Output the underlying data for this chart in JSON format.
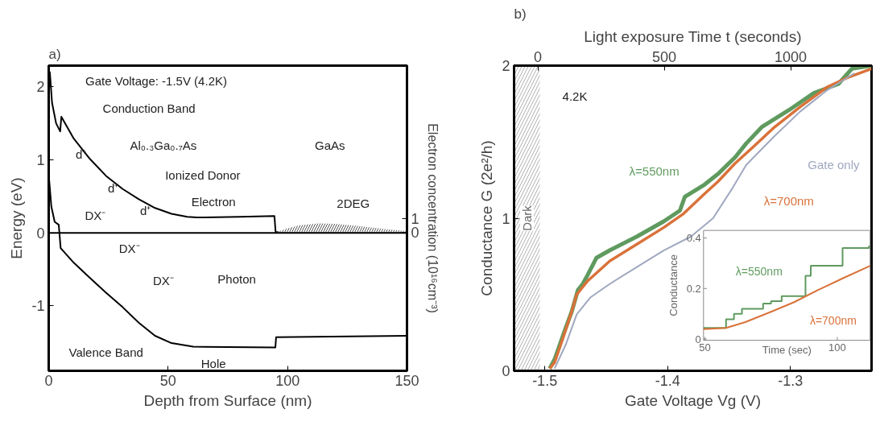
{
  "chart_data": [
    {
      "type": "line",
      "title": "a)",
      "xlabel": "Depth from Surface (nm)",
      "ylabel": "Energy (eV)",
      "y2label": "Electron concentration (10¹⁶cm⁻³)",
      "xlim": [
        0,
        150
      ],
      "xticks": [
        0,
        50,
        100,
        150
      ],
      "ylim": [
        -1.89,
        2.29
      ],
      "yticks": [
        -1,
        0,
        1,
        2
      ],
      "y2lim": [
        -9.7,
        11.7
      ],
      "y2ticks": [
        0,
        1
      ],
      "grid": false,
      "series": [
        {
          "type": "line",
          "color": "#000000",
          "x": [
            0.3,
            0.5,
            1.4,
            3.1,
            4.8,
            5.3,
            10.5,
            17.3,
            24,
            31,
            37.7,
            44.5,
            51.4,
            58,
            62,
            80,
            94.5,
            95,
            150
          ],
          "values": [
            2.21,
            2.19,
            1.78,
            1.5,
            1.39,
            1.59,
            1.29,
            1.01,
            0.78,
            0.6,
            0.46,
            0.34,
            0.26,
            0.22,
            0.21,
            0.22,
            0.23,
            0.01,
            0.01
          ]
        },
        {
          "type": "line",
          "color": "#000000",
          "x": [
            0.2,
            1.1,
            2.5,
            4.2,
            5,
            10.5,
            17.3,
            24,
            31,
            37.7,
            44.5,
            51.4,
            60.5,
            94.9,
            95.2,
            150
          ],
          "values": [
            0.72,
            0.36,
            0.15,
            0.11,
            -0.21,
            -0.41,
            -0.62,
            -0.82,
            -1.02,
            -1.23,
            -1.41,
            -1.51,
            -1.56,
            -1.57,
            -1.43,
            -1.41
          ]
        },
        {
          "type": "area",
          "axis": "y2",
          "color": "#555555",
          "x": [
            95,
            100,
            105,
            113,
            120,
            130,
            140,
            150
          ],
          "values": [
            0,
            0.3,
            0.5,
            0.63,
            0.6,
            0.45,
            0.25,
            0.1
          ]
        }
      ],
      "ref_lines": [
        {
          "axis": "y",
          "value": 0,
          "color": "#000000"
        }
      ],
      "annotations": [
        "Gate Voltage: -1.5V (4.2K)",
        "Conduction Band",
        "Al₀.₃Ga₀.₇As",
        "GaAs",
        "Ionized Donor",
        "Electron",
        "2DEG",
        "d⁺",
        "d⁺",
        "d⁺",
        "DX⁻",
        "DX⁻",
        "DX⁻",
        "Photon",
        "Valence Band",
        "Hole"
      ]
    },
    {
      "type": "line",
      "title": "b)",
      "xlabel": "Gate Voltage Vg (V)",
      "ylabel": "Conductance G (2e²/h)",
      "x2label": "Light exposure Time t (seconds)",
      "xlim": [
        -1.525,
        -1.234
      ],
      "xticks": [
        -1.5,
        -1.4,
        -1.3
      ],
      "x2lim": [
        -94,
        1320
      ],
      "x2ticks": [
        0,
        500,
        1000
      ],
      "ylim": [
        0,
        2
      ],
      "yticks": [
        0,
        1,
        2
      ],
      "grid": false,
      "series": [
        {
          "name": "λ=550nm",
          "color": "#5f9a5f",
          "x": [
            -1.496,
            -1.492,
            -1.483,
            -1.478,
            -1.473,
            -1.469,
            -1.465,
            -1.458,
            -1.447,
            -1.425,
            -1.403,
            -1.39,
            -1.386,
            -1.37,
            -1.359,
            -1.345,
            -1.336,
            -1.323,
            -1.301,
            -1.281,
            -1.261,
            -1.25,
            -1.234
          ],
          "values": [
            0.015,
            0.075,
            0.28,
            0.39,
            0.53,
            0.57,
            0.63,
            0.74,
            0.79,
            0.88,
            0.98,
            1.05,
            1.14,
            1.22,
            1.29,
            1.4,
            1.49,
            1.6,
            1.71,
            1.82,
            1.88,
            1.98,
            2.0
          ]
        },
        {
          "name": "λ=700nm",
          "color": "#d9723a",
          "x": [
            -1.496,
            -1.492,
            -1.485,
            -1.478,
            -1.474,
            -1.465,
            -1.447,
            -1.425,
            -1.403,
            -1.387,
            -1.37,
            -1.359,
            -1.345,
            -1.33,
            -1.314,
            -1.292,
            -1.27,
            -1.254,
            -1.234
          ],
          "values": [
            0.015,
            0.055,
            0.22,
            0.39,
            0.5,
            0.59,
            0.72,
            0.83,
            0.94,
            1.03,
            1.16,
            1.24,
            1.36,
            1.47,
            1.59,
            1.73,
            1.86,
            1.92,
            1.98
          ]
        },
        {
          "name": "Gate only",
          "color": "#a0a8c0",
          "x": [
            -1.492,
            -1.483,
            -1.474,
            -1.463,
            -1.447,
            -1.425,
            -1.403,
            -1.381,
            -1.363,
            -1.347,
            -1.336,
            -1.314,
            -1.292,
            -1.27,
            -1.248
          ],
          "values": [
            0.015,
            0.17,
            0.37,
            0.48,
            0.57,
            0.68,
            0.79,
            0.88,
            1.0,
            1.2,
            1.35,
            1.53,
            1.7,
            1.84,
            1.95
          ]
        }
      ],
      "bands": [
        {
          "axis": "x",
          "from": -1.525,
          "to": -1.504,
          "label": "Dark",
          "color": "#b0b0b0"
        }
      ],
      "annotations": [
        "4.2K"
      ]
    },
    {
      "type": "line",
      "xlabel": "Time (sec)",
      "ylabel": "Conductance",
      "xlim": [
        49.5,
        112.4
      ],
      "xticks": [
        50,
        100
      ],
      "ylim": [
        -0.005,
        0.43
      ],
      "yticks": [
        0,
        0.2,
        0.4
      ],
      "grid": false,
      "series": [
        {
          "type": "step",
          "name": "λ=550nm",
          "color": "#5f9a5f",
          "x": [
            49.5,
            58,
            61,
            64,
            72,
            75,
            79,
            86,
            88,
            90,
            102,
            112
          ],
          "values": [
            0.044,
            0.078,
            0.1,
            0.12,
            0.14,
            0.15,
            0.17,
            0.17,
            0.25,
            0.29,
            0.36,
            0.37
          ]
        },
        {
          "type": "line",
          "name": "λ=700nm",
          "color": "#d9723a",
          "x": [
            49.5,
            58,
            65.3,
            75.5,
            83.7,
            93.9,
            102,
            112.4
          ],
          "values": [
            0.039,
            0.044,
            0.067,
            0.11,
            0.146,
            0.2,
            0.24,
            0.29
          ]
        }
      ]
    }
  ]
}
